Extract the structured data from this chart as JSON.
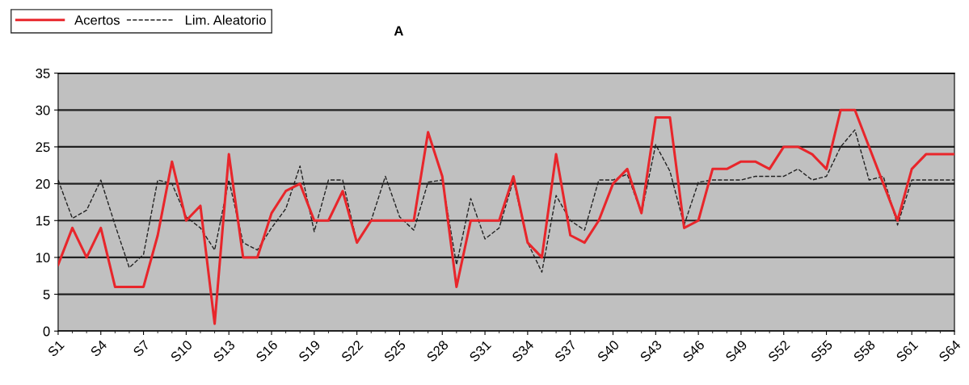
{
  "chart_data": {
    "type": "line",
    "title": "A",
    "categories": [
      "S1",
      null,
      null,
      "S4",
      null,
      null,
      "S7",
      null,
      null,
      "S10",
      null,
      null,
      "S13",
      null,
      null,
      "S16",
      null,
      null,
      "S19",
      null,
      null,
      "S22",
      null,
      null,
      "S25",
      null,
      null,
      "S28",
      null,
      null,
      "S31",
      null,
      null,
      "S34",
      null,
      null,
      "S37",
      null,
      null,
      "S40",
      null,
      null,
      "S43",
      null,
      null,
      "S46",
      null,
      null,
      "S49",
      null,
      null,
      "S52",
      null,
      null,
      "S55",
      null,
      null,
      "S58",
      null,
      null,
      "S61",
      null,
      null,
      "S64"
    ],
    "series": [
      {
        "name": "Acertos",
        "color": "#e8262b",
        "line_style": "solid",
        "values": [
          9,
          14,
          10,
          14,
          6,
          6,
          6,
          13,
          23,
          15,
          17,
          1,
          24,
          10,
          10,
          16,
          19,
          20,
          15,
          15,
          19,
          12,
          15,
          15,
          15,
          15,
          27,
          21,
          6,
          15,
          15,
          15,
          21,
          12,
          10,
          24,
          13,
          12,
          15,
          20,
          22,
          16,
          29,
          29,
          14,
          15,
          22,
          22,
          23,
          23,
          22,
          25,
          25,
          24,
          22,
          30,
          30,
          25,
          20,
          15,
          22,
          24,
          24,
          24
        ]
      },
      {
        "name": "Lim. Aleatorio",
        "color": "#222222",
        "line_style": "dashed",
        "values": [
          20.5,
          15.3,
          16.4,
          20.5,
          14.4,
          8.6,
          10.4,
          20.5,
          20,
          15.5,
          14,
          11,
          20.5,
          12,
          11,
          14,
          16.6,
          22.4,
          13.5,
          20.5,
          20.5,
          12,
          15,
          21,
          15.5,
          13.7,
          20.2,
          20.5,
          9,
          18,
          12.5,
          14,
          20.5,
          12,
          8,
          18.4,
          15,
          13.7,
          20.5,
          20.5,
          21.3,
          16,
          25.3,
          21.7,
          14.4,
          20.2,
          20.5,
          20.5,
          20.5,
          21,
          21,
          21,
          22,
          20.5,
          21,
          25,
          27.3,
          20.5,
          21,
          14.4,
          20.5,
          20.5,
          20.5,
          20.5
        ]
      }
    ],
    "ylim": [
      0,
      35
    ],
    "yticks": [
      0,
      5,
      10,
      15,
      20,
      25,
      30,
      35
    ],
    "grid": "y",
    "legend": "top left",
    "marker": "none"
  }
}
